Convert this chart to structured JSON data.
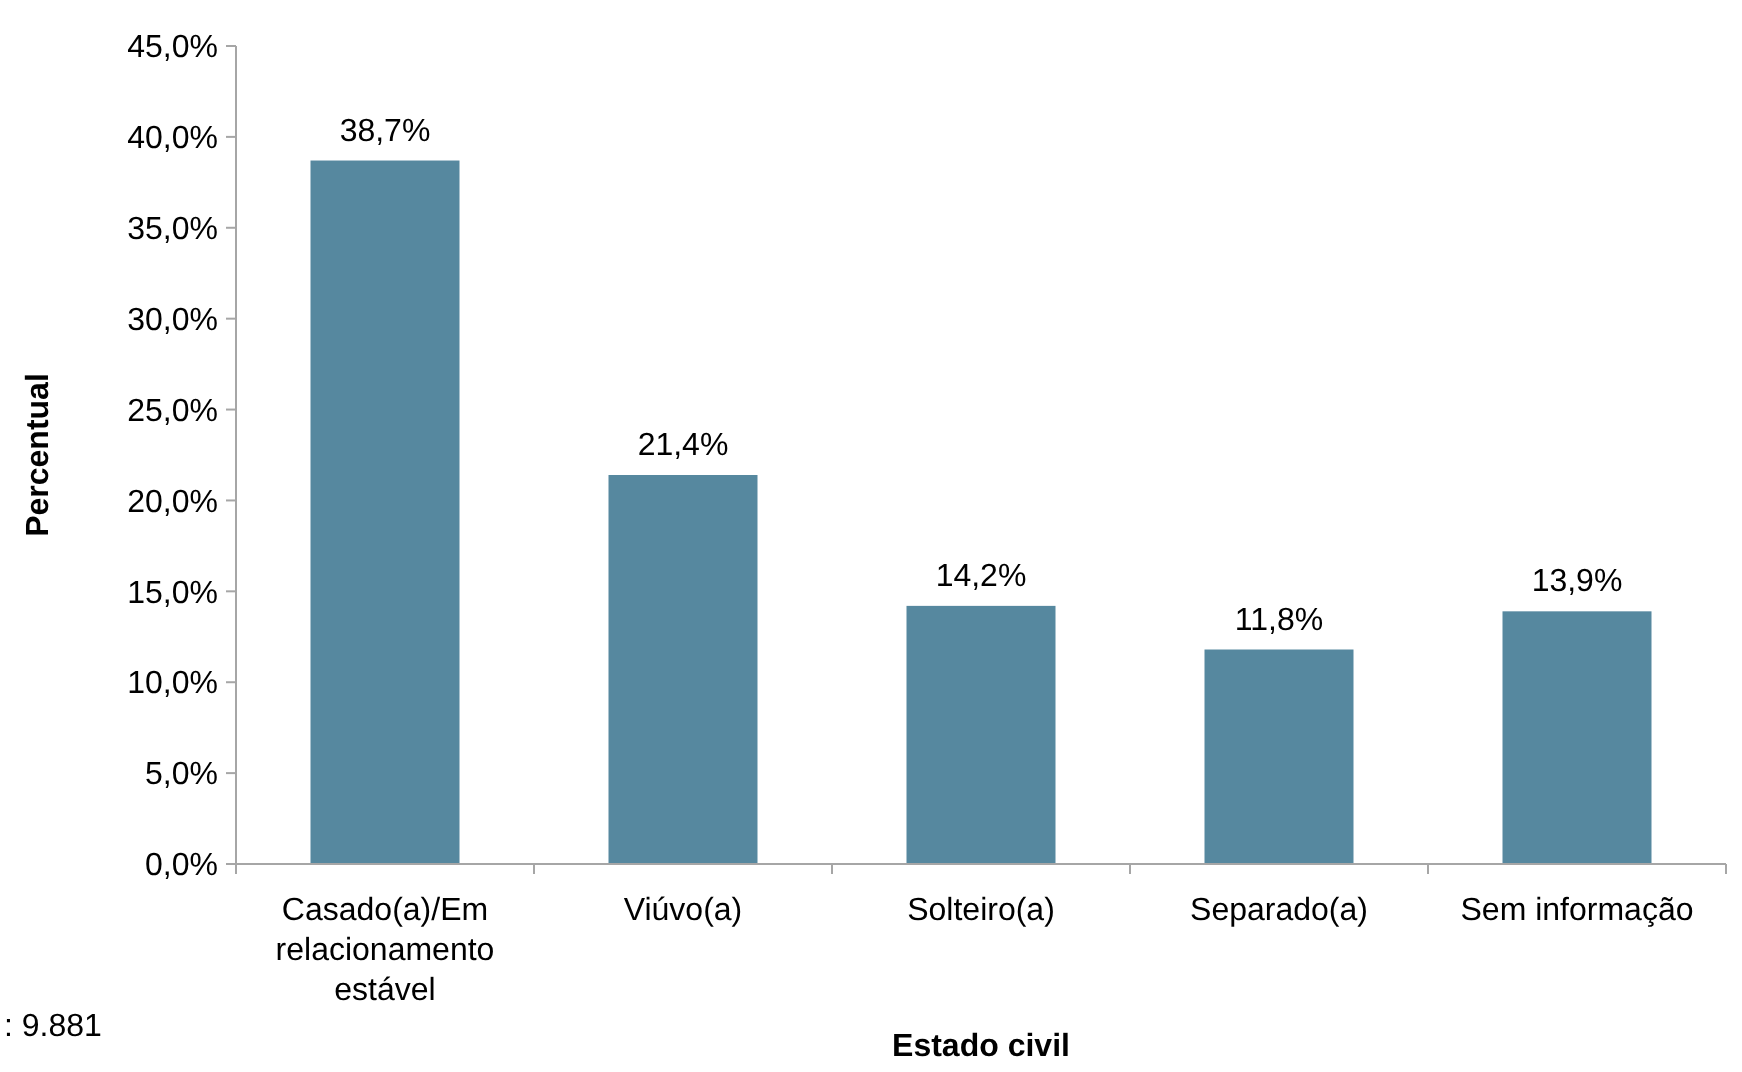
{
  "chart_data": {
    "type": "bar",
    "xlabel": "Estado civil",
    "ylabel": "Percentual",
    "categories": [
      "Casado(a)/Em relacionamento estável",
      "Viúvo(a)",
      "Solteiro(a)",
      "Separado(a)",
      "Sem informação"
    ],
    "values": [
      38.7,
      21.4,
      14.2,
      11.8,
      13.9
    ],
    "value_labels": [
      "38,7%",
      "21,4%",
      "14,2%",
      "11,8%",
      "13,9%"
    ],
    "color": "#56889f",
    "ylim": [
      0,
      45
    ],
    "yticks": [
      {
        "value": 0,
        "label": "0,0%"
      },
      {
        "value": 5,
        "label": "5,0%"
      },
      {
        "value": 10,
        "label": "10,0%"
      },
      {
        "value": 15,
        "label": "15,0%"
      },
      {
        "value": 20,
        "label": "20,0%"
      },
      {
        "value": 25,
        "label": "25,0%"
      },
      {
        "value": 30,
        "label": "30,0%"
      },
      {
        "value": 35,
        "label": "35,0%"
      },
      {
        "value": 40,
        "label": "40,0%"
      },
      {
        "value": 45,
        "label": "45,0%"
      }
    ],
    "grid": false,
    "annotations": [
      ": 9.881"
    ]
  }
}
